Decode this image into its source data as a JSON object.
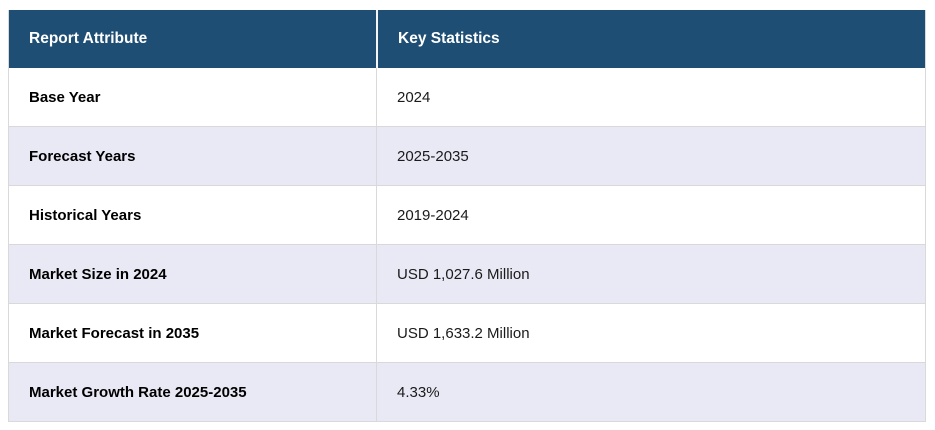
{
  "colors": {
    "header_bg": "#1f4e74",
    "header_text": "#ffffff",
    "stripe_bg": "#e8e9f4",
    "row_bg": "#ffffff",
    "border": "#d9d9d9",
    "attribute_text": "#000000",
    "value_text": "#1a1a1a"
  },
  "table": {
    "columns": [
      {
        "label": "Report Attribute"
      },
      {
        "label": "Key Statistics"
      }
    ],
    "rows": [
      {
        "attribute": "Base Year",
        "value": "2024"
      },
      {
        "attribute": "Forecast Years",
        "value": "2025-2035"
      },
      {
        "attribute": "Historical Years",
        "value": "2019-2024"
      },
      {
        "attribute": "Market Size in 2024",
        "value": "USD 1,027.6 Million"
      },
      {
        "attribute": "Market Forecast in 2035",
        "value": "USD 1,633.2 Million"
      },
      {
        "attribute": "Market Growth Rate 2025-2035",
        "value": "4.33%"
      }
    ]
  }
}
